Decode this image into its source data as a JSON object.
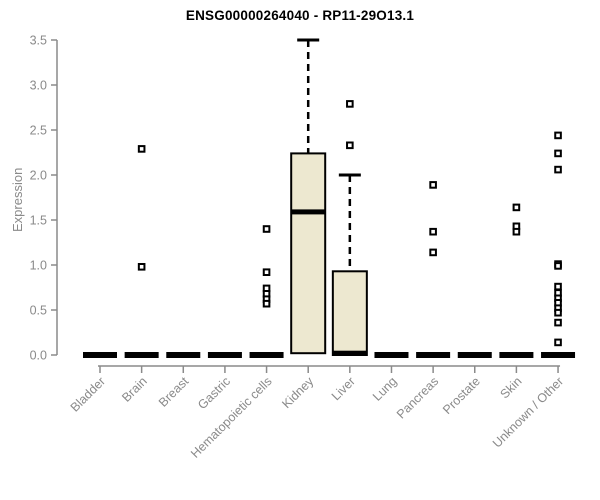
{
  "title": "ENSG00000264040 - RP11-29O13.1",
  "y_axis_title": "Expression",
  "chart_data": {
    "type": "boxplot",
    "title": "ENSG00000264040 - RP11-29O13.1",
    "xlabel": "",
    "ylabel": "Expression",
    "ylim": [
      0.0,
      3.5
    ],
    "ytick_labels": [
      "0.0",
      "0.5",
      "1.0",
      "1.5",
      "2.0",
      "2.5",
      "3.0",
      "3.5"
    ],
    "ytick_values": [
      0.0,
      0.5,
      1.0,
      1.5,
      2.0,
      2.5,
      3.0,
      3.5
    ],
    "grid": "off",
    "legend": "none",
    "categories": [
      "Bladder",
      "Brain",
      "Breast",
      "Gastric",
      "Hematopoietic cells",
      "Kidney",
      "Liver",
      "Lung",
      "Pancreas",
      "Prostate",
      "Skin",
      "Unknown / Other"
    ],
    "boxes": [
      {
        "category": "Bladder",
        "q1": 0,
        "median": 0,
        "q3": 0,
        "whisker_low": 0,
        "whisker_high": 0,
        "outliers": []
      },
      {
        "category": "Brain",
        "q1": 0,
        "median": 0,
        "q3": 0,
        "whisker_low": 0,
        "whisker_high": 0,
        "outliers": [
          2.29,
          0.98
        ]
      },
      {
        "category": "Breast",
        "q1": 0,
        "median": 0,
        "q3": 0,
        "whisker_low": 0,
        "whisker_high": 0,
        "outliers": []
      },
      {
        "category": "Gastric",
        "q1": 0,
        "median": 0,
        "q3": 0,
        "whisker_low": 0,
        "whisker_high": 0,
        "outliers": []
      },
      {
        "category": "Hematopoietic cells",
        "q1": 0,
        "median": 0,
        "q3": 0,
        "whisker_low": 0,
        "whisker_high": 0,
        "outliers": [
          1.4,
          0.92,
          0.74,
          0.68,
          0.62,
          0.57
        ]
      },
      {
        "category": "Kidney",
        "q1": 0.02,
        "median": 1.59,
        "q3": 2.24,
        "whisker_low": 0.02,
        "whisker_high": 3.5,
        "outliers": []
      },
      {
        "category": "Liver",
        "q1": 0,
        "median": 0.02,
        "q3": 0.93,
        "whisker_low": 0,
        "whisker_high": 2.0,
        "outliers": [
          2.79,
          2.33
        ]
      },
      {
        "category": "Lung",
        "q1": 0,
        "median": 0,
        "q3": 0,
        "whisker_low": 0,
        "whisker_high": 0,
        "outliers": []
      },
      {
        "category": "Pancreas",
        "q1": 0,
        "median": 0,
        "q3": 0,
        "whisker_low": 0,
        "whisker_high": 0,
        "outliers": [
          1.89,
          1.37,
          1.14
        ]
      },
      {
        "category": "Prostate",
        "q1": 0,
        "median": 0,
        "q3": 0,
        "whisker_low": 0,
        "whisker_high": 0,
        "outliers": []
      },
      {
        "category": "Skin",
        "q1": 0,
        "median": 0,
        "q3": 0,
        "whisker_low": 0,
        "whisker_high": 0,
        "outliers": [
          1.64,
          1.43,
          1.37
        ]
      },
      {
        "category": "Unknown / Other",
        "q1": 0,
        "median": 0,
        "q3": 0,
        "whisker_low": 0,
        "whisker_high": 0,
        "outliers": [
          2.44,
          2.24,
          2.06,
          1.01,
          0.99,
          0.76,
          0.69,
          0.63,
          0.58,
          0.52,
          0.47,
          0.36,
          0.14
        ]
      }
    ],
    "colors": {
      "box_fill": "#EDE8D0",
      "box_border": "#000000",
      "median": "#000000",
      "whisker": "#000000",
      "outlier": "#000000",
      "axis": "#8a8a8a",
      "tick_label": "#8a8a8a",
      "title": "#000000"
    }
  }
}
